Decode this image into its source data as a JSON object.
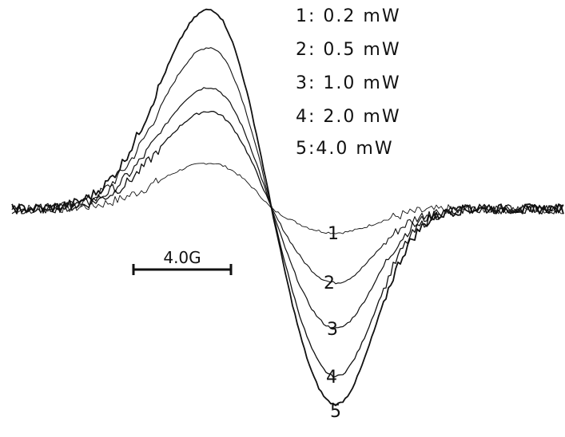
{
  "chart_data": {
    "type": "line",
    "title": "",
    "xlabel": "",
    "ylabel": "",
    "grid": false,
    "legend": {
      "placement": "top-right",
      "entries": [
        "1: 0.2 mW",
        "2: 0.5 mW",
        "3: 1.0 mW",
        "4: 2.0 mW",
        "5:4.0 mW"
      ]
    },
    "scale_bar": {
      "label": "4.0G",
      "length_gauss": 4.0
    },
    "series": [
      {
        "label": "1",
        "peak": 0.23,
        "trough": -0.12,
        "noise": 0.05
      },
      {
        "label": "2",
        "peak": 0.81,
        "trough": -0.37,
        "noise": 0.05
      },
      {
        "label": "3",
        "peak": 0.61,
        "trough": -0.6,
        "noise": 0.05
      },
      {
        "label": "4",
        "peak": 0.49,
        "trough": -0.84,
        "noise": 0.05
      },
      {
        "label": "5",
        "peak": 1.0,
        "trough": -0.98,
        "noise": 0.05
      }
    ]
  }
}
